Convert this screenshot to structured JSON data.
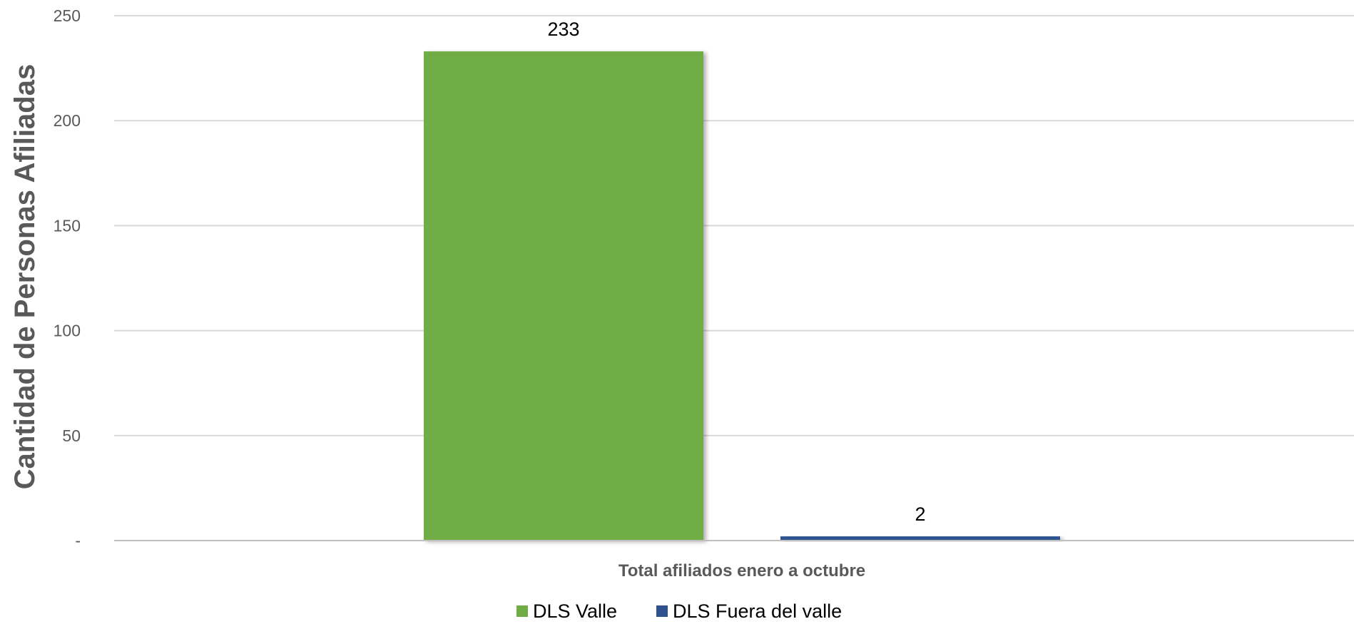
{
  "chart_data": {
    "type": "bar",
    "title": "",
    "xlabel": "",
    "ylabel": "Cantidad de Personas Afiliadas",
    "categories": [
      "Total afiliados enero a octubre"
    ],
    "series": [
      {
        "name": "DLS Valle",
        "values": [
          233
        ],
        "color": "#70AD47"
      },
      {
        "name": "DLS Fuera del valle",
        "values": [
          2
        ],
        "color": "#2F528F"
      }
    ],
    "ylim": [
      0,
      250
    ],
    "yticks": [
      0,
      50,
      100,
      150,
      200,
      250
    ],
    "ytick_labels": [
      "-",
      "50",
      "100",
      "150",
      "200",
      "250"
    ],
    "data_labels": [
      "233",
      "2"
    ],
    "grid": true,
    "legend_position": "bottom"
  }
}
